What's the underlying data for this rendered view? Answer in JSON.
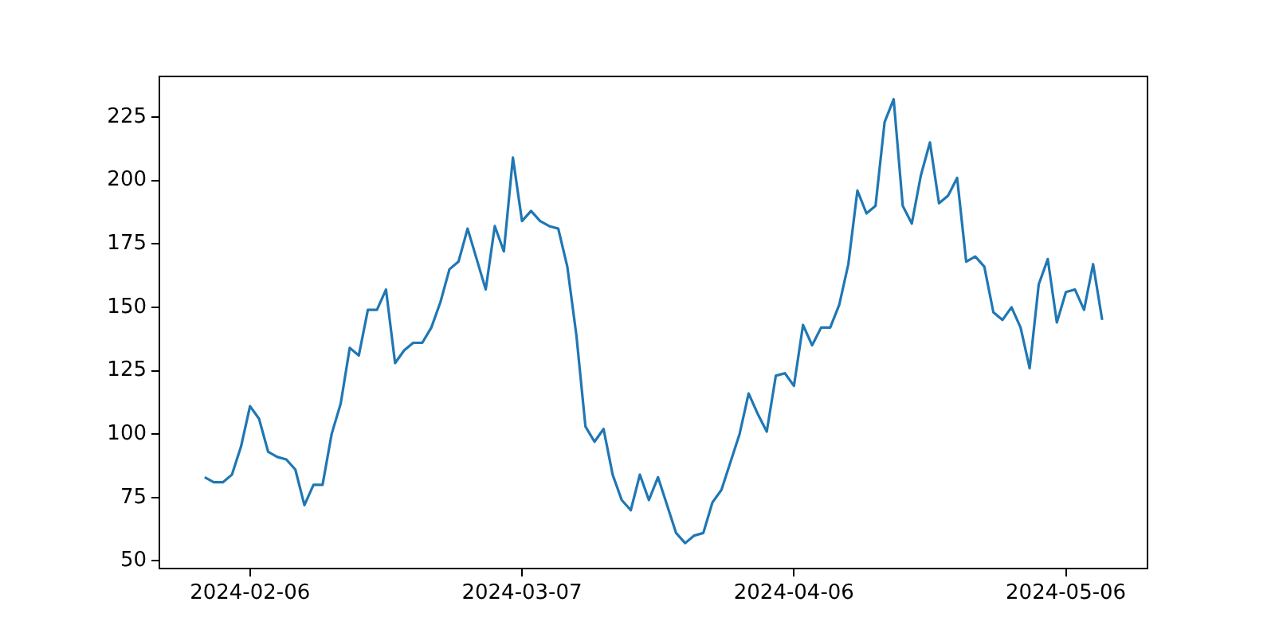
{
  "chart_data": {
    "type": "line",
    "x": [
      "2024-02-01",
      "2024-02-02",
      "2024-02-03",
      "2024-02-04",
      "2024-02-05",
      "2024-02-06",
      "2024-02-07",
      "2024-02-08",
      "2024-02-09",
      "2024-02-10",
      "2024-02-11",
      "2024-02-12",
      "2024-02-13",
      "2024-02-14",
      "2024-02-15",
      "2024-02-16",
      "2024-02-17",
      "2024-02-18",
      "2024-02-19",
      "2024-02-20",
      "2024-02-21",
      "2024-02-22",
      "2024-02-23",
      "2024-02-24",
      "2024-02-25",
      "2024-02-26",
      "2024-02-27",
      "2024-02-28",
      "2024-02-29",
      "2024-03-01",
      "2024-03-02",
      "2024-03-03",
      "2024-03-04",
      "2024-03-05",
      "2024-03-06",
      "2024-03-07",
      "2024-03-08",
      "2024-03-09",
      "2024-03-10",
      "2024-03-11",
      "2024-03-12",
      "2024-03-13",
      "2024-03-14",
      "2024-03-15",
      "2024-03-16",
      "2024-03-17",
      "2024-03-18",
      "2024-03-19",
      "2024-03-20",
      "2024-03-21",
      "2024-03-22",
      "2024-03-23",
      "2024-03-24",
      "2024-03-25",
      "2024-03-26",
      "2024-03-27",
      "2024-03-28",
      "2024-03-29",
      "2024-03-30",
      "2024-03-31",
      "2024-04-01",
      "2024-04-02",
      "2024-04-03",
      "2024-04-04",
      "2024-04-05",
      "2024-04-06",
      "2024-04-07",
      "2024-04-08",
      "2024-04-09",
      "2024-04-10",
      "2024-04-11",
      "2024-04-12",
      "2024-04-13",
      "2024-04-14",
      "2024-04-15",
      "2024-04-16",
      "2024-04-17",
      "2024-04-18",
      "2024-04-19",
      "2024-04-20",
      "2024-04-21",
      "2024-04-22",
      "2024-04-23",
      "2024-04-24",
      "2024-04-25",
      "2024-04-26",
      "2024-04-27",
      "2024-04-28",
      "2024-04-29",
      "2024-04-30",
      "2024-05-01",
      "2024-05-02",
      "2024-05-03",
      "2024-05-04",
      "2024-05-05",
      "2024-05-06",
      "2024-05-07",
      "2024-05-08",
      "2024-05-09",
      "2024-05-10"
    ],
    "series": [
      {
        "color": "#1f77b4",
        "values": [
          83,
          81,
          81,
          84,
          95,
          111,
          106,
          93,
          91,
          90,
          86,
          72,
          80,
          80,
          100,
          112,
          134,
          131,
          149,
          149,
          157,
          128,
          133,
          136,
          136,
          142,
          152,
          165,
          168,
          181,
          169,
          157,
          182,
          172,
          209,
          184,
          188,
          184,
          182,
          181,
          166,
          139,
          103,
          97,
          102,
          84,
          74,
          70,
          84,
          74,
          83,
          72,
          61,
          57,
          60,
          61,
          73,
          78,
          89,
          100,
          116,
          108,
          101,
          123,
          124,
          119,
          143,
          135,
          142,
          142,
          151,
          167,
          196,
          187,
          190,
          223,
          232,
          190,
          183,
          202,
          215,
          191,
          194,
          201,
          168,
          170,
          166,
          148,
          145,
          150,
          142,
          126,
          159,
          169,
          144,
          156,
          157,
          149,
          167,
          145
        ]
      }
    ],
    "xlim": [
      "2024-01-27",
      "2024-05-15"
    ],
    "xticks": [
      "2024-02-06",
      "2024-03-07",
      "2024-04-06",
      "2024-05-06"
    ],
    "ylim": [
      47,
      241
    ],
    "yticks": [
      50,
      75,
      100,
      125,
      150,
      175,
      200,
      225
    ],
    "grid": false,
    "legend": false,
    "marker": "none",
    "line_style": "solid"
  }
}
